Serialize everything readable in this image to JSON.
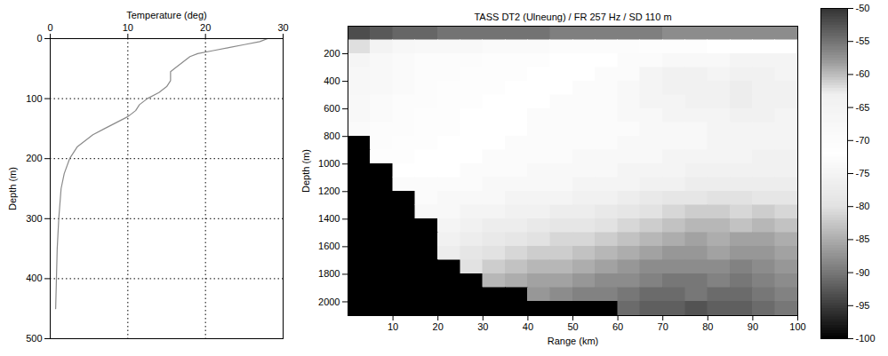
{
  "chart_data": [
    {
      "type": "line",
      "x_label": "Temperature (deg)",
      "y_label": "Depth (m)",
      "x": [
        28,
        27,
        25,
        23,
        21,
        19,
        18,
        17,
        16,
        15.5,
        15.5,
        15.5,
        15,
        14,
        12.5,
        11.5,
        11,
        10,
        8.5,
        7,
        5.5,
        4.5,
        3.5,
        2.5,
        1.8,
        1.4,
        1.1,
        0.9,
        0.8,
        0.7
      ],
      "y": [
        0,
        5,
        10,
        15,
        20,
        25,
        30,
        40,
        50,
        55,
        60,
        70,
        80,
        90,
        100,
        110,
        120,
        130,
        140,
        150,
        160,
        170,
        180,
        200,
        225,
        250,
        300,
        350,
        400,
        450
      ],
      "xlim": [
        0,
        30
      ],
      "xticks": [
        0,
        10,
        20,
        30
      ],
      "ylim": [
        0,
        500
      ],
      "yticks": [
        0,
        100,
        200,
        300,
        400,
        500
      ],
      "grid": true,
      "color": "#8a8a8a"
    },
    {
      "type": "heatmap",
      "title": "TASS DT2 (Ulneung) / FR 257 Hz / SD 110 m",
      "x_label": "Range (km)",
      "y_label": "Depth (m)",
      "xlim": [
        0,
        100
      ],
      "xticks": [
        10,
        20,
        30,
        40,
        50,
        60,
        70,
        80,
        90,
        100
      ],
      "ylim": [
        0,
        2100
      ],
      "yticks": [
        200,
        400,
        600,
        800,
        1000,
        1200,
        1400,
        1600,
        1800,
        2000
      ],
      "x_edges": [
        0,
        5,
        10,
        15,
        20,
        25,
        30,
        35,
        40,
        45,
        50,
        55,
        60,
        65,
        70,
        75,
        80,
        85,
        90,
        95,
        100
      ],
      "y_edges": [
        0,
        100,
        200,
        300,
        400,
        500,
        600,
        700,
        800,
        900,
        1000,
        1100,
        1200,
        1300,
        1400,
        1500,
        1600,
        1700,
        1800,
        1900,
        2000,
        2100
      ],
      "cells": [
        [
          -52,
          -53,
          -54,
          -54,
          -55,
          -55,
          -55,
          -55,
          -55,
          -56,
          -56,
          -56,
          -56,
          -56,
          -57,
          -57,
          -57,
          -57,
          -57,
          -57
        ],
        [
          -62,
          -65,
          -67,
          -68,
          -68,
          -68,
          -69,
          -69,
          -69,
          -70,
          -70,
          -70,
          -70,
          -71,
          -71,
          -71,
          -72,
          -72,
          -72,
          -72
        ],
        [
          -66,
          -68,
          -69,
          -70,
          -70,
          -70,
          -71,
          -71,
          -71,
          -72,
          -72,
          -72,
          -73,
          -73,
          -74,
          -74,
          -74,
          -75,
          -75,
          -75
        ],
        [
          -67,
          -68,
          -69,
          -70,
          -70,
          -71,
          -71,
          -71,
          -72,
          -72,
          -72,
          -73,
          -73,
          -75,
          -76,
          -76,
          -75,
          -76,
          -76,
          -75
        ],
        [
          -67,
          -68,
          -69,
          -70,
          -71,
          -71,
          -71,
          -72,
          -72,
          -72,
          -73,
          -73,
          -74,
          -75,
          -76,
          -76,
          -76,
          -77,
          -76,
          -76
        ],
        [
          -68,
          -69,
          -70,
          -70,
          -71,
          -71,
          -72,
          -72,
          -72,
          -73,
          -73,
          -73,
          -74,
          -75,
          -75,
          -76,
          -76,
          -77,
          -76,
          -76
        ],
        [
          -68,
          -69,
          -70,
          -71,
          -71,
          -72,
          -72,
          -72,
          -73,
          -73,
          -73,
          -73,
          -74,
          -74,
          -75,
          -75,
          -75,
          -76,
          -76,
          -75
        ],
        [
          -69,
          -70,
          -70,
          -71,
          -71,
          -72,
          -72,
          -72,
          -73,
          -73,
          -73,
          -73,
          -73,
          -74,
          -74,
          -74,
          -75,
          -75,
          -75,
          -75
        ],
        [
          -100,
          -70,
          -71,
          -71,
          -72,
          -72,
          -72,
          -73,
          -73,
          -73,
          -73,
          -73,
          -74,
          -74,
          -74,
          -74,
          -75,
          -75,
          -75,
          -75
        ],
        [
          -100,
          -71,
          -71,
          -72,
          -72,
          -72,
          -73,
          -73,
          -73,
          -73,
          -74,
          -74,
          -74,
          -74,
          -75,
          -75,
          -75,
          -75,
          -76,
          -76
        ],
        [
          -100,
          -100,
          -72,
          -72,
          -72,
          -73,
          -73,
          -73,
          -74,
          -74,
          -74,
          -74,
          -75,
          -75,
          -75,
          -76,
          -76,
          -76,
          -76,
          -76
        ],
        [
          -100,
          -100,
          -73,
          -73,
          -73,
          -73,
          -74,
          -74,
          -74,
          -74,
          -75,
          -75,
          -75,
          -76,
          -76,
          -77,
          -77,
          -77,
          -77,
          -77
        ],
        [
          -100,
          -100,
          -100,
          -73,
          -74,
          -74,
          -74,
          -75,
          -75,
          -75,
          -76,
          -76,
          -77,
          -78,
          -79,
          -79,
          -80,
          -80,
          -79,
          -79
        ],
        [
          -100,
          -100,
          -100,
          -74,
          -74,
          -75,
          -75,
          -76,
          -76,
          -77,
          -77,
          -78,
          -79,
          -80,
          -81,
          -82,
          -82,
          -81,
          -82,
          -81
        ],
        [
          -100,
          -100,
          -100,
          -100,
          -75,
          -76,
          -77,
          -77,
          -78,
          -79,
          -79,
          -80,
          -81,
          -82,
          -83,
          -84,
          -84,
          -83,
          -84,
          -83
        ],
        [
          -100,
          -100,
          -100,
          -100,
          -76,
          -77,
          -78,
          -79,
          -80,
          -81,
          -81,
          -82,
          -83,
          -84,
          -85,
          -86,
          -85,
          -86,
          -86,
          -85
        ],
        [
          -100,
          -100,
          -100,
          -100,
          -77,
          -79,
          -80,
          -81,
          -82,
          -82,
          -83,
          -84,
          -85,
          -86,
          -87,
          -87,
          -86,
          -87,
          -87,
          -86
        ],
        [
          -100,
          -100,
          -100,
          -100,
          -100,
          -80,
          -82,
          -83,
          -84,
          -84,
          -85,
          -86,
          -87,
          -88,
          -88,
          -88,
          -88,
          -89,
          -88,
          -87
        ],
        [
          -100,
          -100,
          -100,
          -100,
          -100,
          -100,
          -84,
          -85,
          -86,
          -86,
          -87,
          -88,
          -88,
          -89,
          -90,
          -90,
          -89,
          -90,
          -89,
          -88
        ],
        [
          -100,
          -100,
          -100,
          -100,
          -100,
          -100,
          -100,
          -100,
          -87,
          -88,
          -89,
          -89,
          -90,
          -91,
          -91,
          -90,
          -91,
          -91,
          -90,
          -89
        ],
        [
          -100,
          -100,
          -100,
          -100,
          -100,
          -100,
          -100,
          -100,
          -100,
          -100,
          -100,
          -100,
          -91,
          -92,
          -92,
          -93,
          -92,
          -92,
          -91,
          -90
        ]
      ],
      "colorbar_range": [
        -100,
        -50
      ],
      "colorbar_ticks": [
        -50,
        -55,
        -60,
        -65,
        -70,
        -75,
        -80,
        -85,
        -90,
        -95,
        -100
      ]
    }
  ]
}
